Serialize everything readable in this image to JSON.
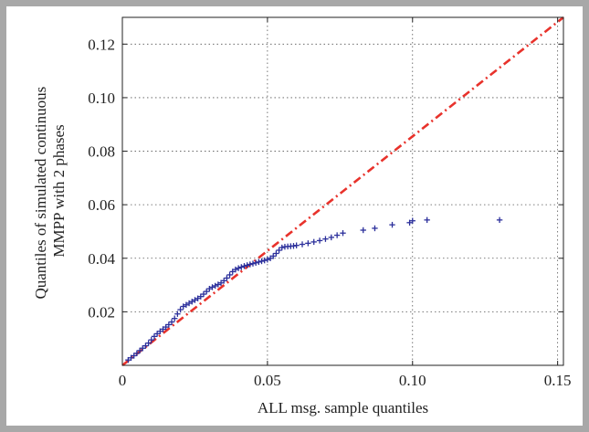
{
  "chart_data": {
    "type": "scatter",
    "xlabel": "ALL msg. sample quantiles",
    "ylabel": [
      "Quantiles of simulated continuous",
      "MMPP with 2 phases"
    ],
    "xlim": [
      0,
      0.152
    ],
    "ylim": [
      0,
      0.13
    ],
    "x_ticks": [
      0,
      0.05,
      0.1,
      0.15
    ],
    "x_tick_labels": [
      "0",
      "0.05",
      "0.10",
      "0.15"
    ],
    "y_ticks": [
      0.02,
      0.04,
      0.06,
      0.08,
      0.1,
      0.12
    ],
    "y_tick_labels": [
      "0.02",
      "0.04",
      "0.06",
      "0.08",
      "0.10",
      "0.12"
    ],
    "grid": true,
    "marker": "+",
    "colors": {
      "points": "#2b2f9b",
      "reference": "#e8322b"
    },
    "series": [
      {
        "values": [
          [
            0.002,
            0.002
          ],
          [
            0.003,
            0.0028
          ],
          [
            0.004,
            0.0036
          ],
          [
            0.005,
            0.0045
          ],
          [
            0.006,
            0.0055
          ],
          [
            0.007,
            0.0064
          ],
          [
            0.008,
            0.0073
          ],
          [
            0.009,
            0.0083
          ],
          [
            0.01,
            0.0095
          ],
          [
            0.011,
            0.0108
          ],
          [
            0.012,
            0.0118
          ],
          [
            0.013,
            0.0127
          ],
          [
            0.014,
            0.0135
          ],
          [
            0.015,
            0.0143
          ],
          [
            0.016,
            0.0152
          ],
          [
            0.017,
            0.0162
          ],
          [
            0.018,
            0.0175
          ],
          [
            0.019,
            0.0192
          ],
          [
            0.02,
            0.0208
          ],
          [
            0.021,
            0.022
          ],
          [
            0.022,
            0.0226
          ],
          [
            0.023,
            0.0232
          ],
          [
            0.024,
            0.0238
          ],
          [
            0.025,
            0.0244
          ],
          [
            0.026,
            0.025
          ],
          [
            0.027,
            0.0257
          ],
          [
            0.028,
            0.0266
          ],
          [
            0.029,
            0.0276
          ],
          [
            0.03,
            0.0286
          ],
          [
            0.031,
            0.0292
          ],
          [
            0.032,
            0.0297
          ],
          [
            0.033,
            0.0302
          ],
          [
            0.034,
            0.0308
          ],
          [
            0.035,
            0.0316
          ],
          [
            0.036,
            0.0326
          ],
          [
            0.037,
            0.0338
          ],
          [
            0.038,
            0.035
          ],
          [
            0.039,
            0.0358
          ],
          [
            0.04,
            0.0363
          ],
          [
            0.041,
            0.0367
          ],
          [
            0.042,
            0.0371
          ],
          [
            0.043,
            0.0374
          ],
          [
            0.044,
            0.0377
          ],
          [
            0.045,
            0.038
          ],
          [
            0.046,
            0.0383
          ],
          [
            0.047,
            0.0386
          ],
          [
            0.048,
            0.0389
          ],
          [
            0.049,
            0.0392
          ],
          [
            0.05,
            0.0395
          ],
          [
            0.051,
            0.04
          ],
          [
            0.052,
            0.0408
          ],
          [
            0.053,
            0.0418
          ],
          [
            0.054,
            0.043
          ],
          [
            0.055,
            0.044
          ],
          [
            0.056,
            0.0443
          ],
          [
            0.057,
            0.0444
          ],
          [
            0.058,
            0.0445
          ],
          [
            0.059,
            0.0446
          ],
          [
            0.06,
            0.0448
          ],
          [
            0.062,
            0.0452
          ],
          [
            0.064,
            0.0456
          ],
          [
            0.066,
            0.0461
          ],
          [
            0.068,
            0.0466
          ],
          [
            0.07,
            0.0472
          ],
          [
            0.072,
            0.0478
          ],
          [
            0.074,
            0.0486
          ],
          [
            0.076,
            0.0494
          ],
          [
            0.083,
            0.0505
          ],
          [
            0.087,
            0.0512
          ],
          [
            0.093,
            0.0525
          ],
          [
            0.099,
            0.0533
          ],
          [
            0.1,
            0.054
          ],
          [
            0.105,
            0.0543
          ],
          [
            0.13,
            0.0543
          ]
        ]
      }
    ],
    "reference_line": {
      "style": "dash-dot",
      "x": [
        0,
        0.152
      ],
      "y": [
        0,
        0.13
      ]
    }
  }
}
